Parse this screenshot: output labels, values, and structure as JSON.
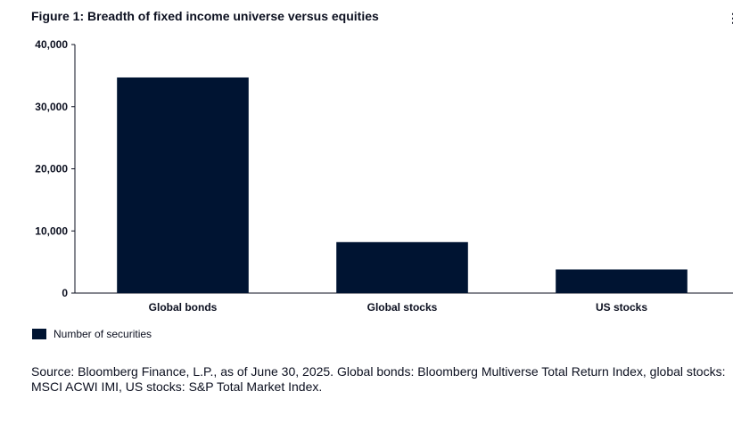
{
  "title": "Figure 1: Breadth of fixed income universe versus equities",
  "menu_icon": "vertical-ellipsis-icon",
  "menu_glyph": "⋮",
  "colors": {
    "bar": "#001432",
    "text": "#0b0f1f",
    "axis": "#0b0f1f"
  },
  "chart_data": {
    "type": "bar",
    "title": "Figure 1: Breadth of fixed income universe versus equities",
    "categories": [
      "Global bonds",
      "Global stocks",
      "US stocks"
    ],
    "series": [
      {
        "name": "Number of securities",
        "values": [
          34700,
          8200,
          3800
        ]
      }
    ],
    "ylim": [
      0,
      40000
    ],
    "yticks": [
      0,
      10000,
      20000,
      30000,
      40000
    ],
    "ytick_labels": [
      "0",
      "10,000",
      "20,000",
      "30,000",
      "40,000"
    ],
    "xlabel": "",
    "ylabel": "",
    "grid": false,
    "legend_position": "bottom-left"
  },
  "legend": {
    "label": "Number of securities"
  },
  "source": "Source: Bloomberg Finance, L.P., as of June 30, 2025. Global bonds: Bloomberg Multiverse Total Return Index, global stocks: MSCI ACWI IMI, US stocks: S&P Total Market Index."
}
